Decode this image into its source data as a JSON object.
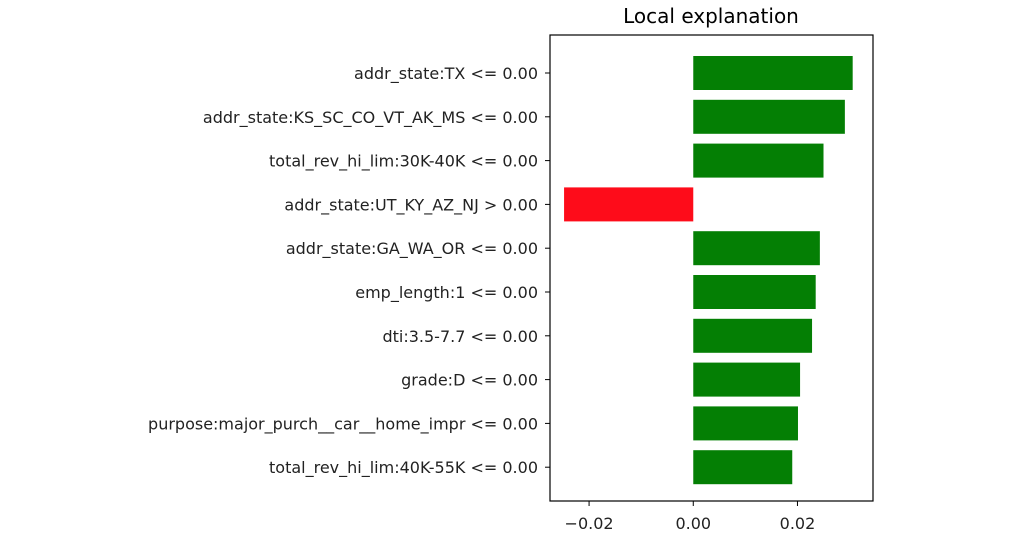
{
  "chart_data": {
    "type": "bar",
    "orientation": "horizontal",
    "title": "Local explanation",
    "xlabel": "",
    "ylabel": "",
    "xlim": [
      -0.0275,
      0.0345
    ],
    "xticks": [
      -0.02,
      0.0,
      0.02
    ],
    "xtick_labels": [
      "−0.02",
      "0.00",
      "0.02"
    ],
    "grid": false,
    "categories": [
      "addr_state:TX <= 0.00",
      "addr_state:KS_SC_CO_VT_AK_MS <= 0.00",
      "total_rev_hi_lim:30K-40K <= 0.00",
      "addr_state:UT_KY_AZ_NJ > 0.00",
      "addr_state:GA_WA_OR <= 0.00",
      "emp_length:1 <= 0.00",
      "dti:3.5-7.7 <= 0.00",
      "grade:D <= 0.00",
      "purpose:major_purch__car__home_impr <= 0.00",
      "total_rev_hi_lim:40K-55K <= 0.00"
    ],
    "values": [
      0.0306,
      0.0291,
      0.025,
      -0.0248,
      0.0243,
      0.0235,
      0.0228,
      0.0205,
      0.0201,
      0.019
    ],
    "colors": {
      "positive": "#047f04",
      "negative": "#fe0c1a"
    }
  }
}
